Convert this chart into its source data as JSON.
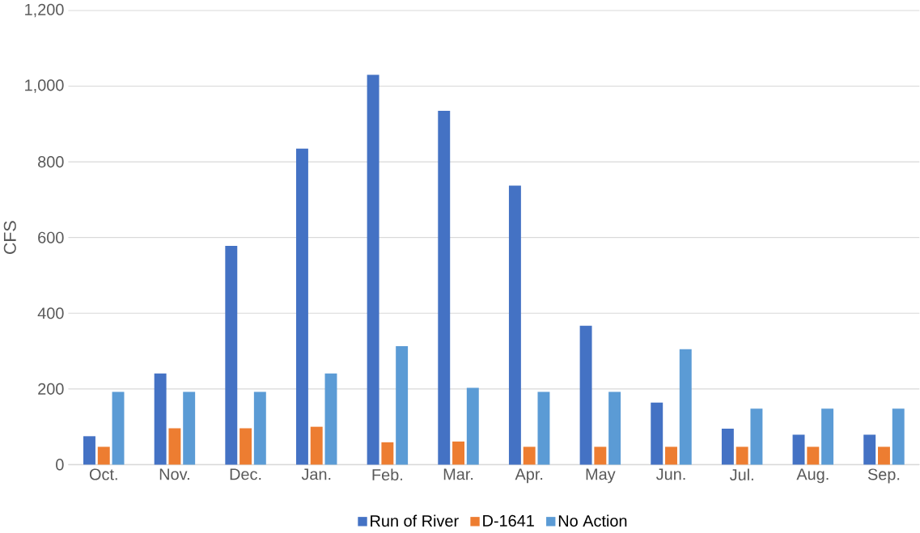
{
  "chart_data": {
    "type": "bar",
    "ylabel": "CFS",
    "categories": [
      "Oct.",
      "Nov.",
      "Dec.",
      "Jan.",
      "Feb.",
      "Mar.",
      "Apr.",
      "May",
      "Jun.",
      "Jul.",
      "Aug.",
      "Sep."
    ],
    "series": [
      {
        "name": "Run of River",
        "color": "#4472c4",
        "values": [
          75,
          241,
          578,
          835,
          1030,
          935,
          737,
          367,
          164,
          95,
          79,
          79
        ]
      },
      {
        "name": "D-1641",
        "color": "#ed7d31",
        "values": [
          47,
          96,
          96,
          100,
          59,
          61,
          47,
          47,
          47,
          47,
          47,
          47
        ]
      },
      {
        "name": "No Action",
        "color": "#5b9bd5",
        "values": [
          192,
          192,
          192,
          241,
          313,
          203,
          192,
          192,
          305,
          148,
          148,
          148
        ]
      }
    ],
    "ylim": [
      0,
      1200
    ],
    "yticks": [
      {
        "value": 0,
        "label": "0"
      },
      {
        "value": 200,
        "label": "200"
      },
      {
        "value": 400,
        "label": "400"
      },
      {
        "value": 600,
        "label": "600"
      },
      {
        "value": 800,
        "label": "800"
      },
      {
        "value": 1000,
        "label": "1,000"
      },
      {
        "value": 1200,
        "label": "1,200"
      }
    ],
    "grid": "y",
    "legend": "bottom"
  }
}
